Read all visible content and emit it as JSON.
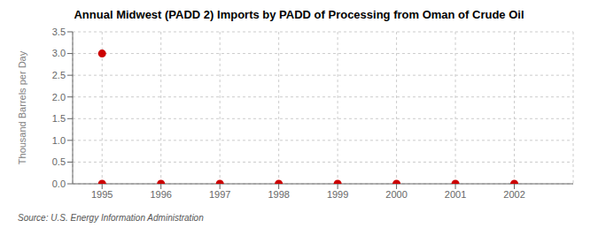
{
  "chart_data": {
    "type": "scatter",
    "title": "Annual Midwest (PADD 2) Imports by PADD of Processing from Oman of Crude Oil",
    "ylabel": "Thousand Barrels per Day",
    "annotations": [
      "Source: U.S. Energy Information Administration"
    ],
    "x": [
      1995,
      1996,
      1997,
      1998,
      1999,
      2000,
      2001,
      2002,
      1995
    ],
    "values": [
      0.0,
      0.0,
      0.0,
      0.0,
      0.0,
      0.0,
      0.0,
      0.0,
      3.0
    ],
    "color": "#cc0000",
    "xlim": [
      1994.5,
      2003.0
    ],
    "ylim": [
      0.0,
      3.5
    ],
    "xticks": [
      1995,
      1996,
      1997,
      1998,
      1999,
      2000,
      2001,
      2002
    ],
    "yticks": [
      {
        "value": 0.0,
        "label": "0.0"
      },
      0.5,
      {
        "value": 1.0,
        "label": "1.0"
      },
      1.5,
      {
        "value": 2.0,
        "label": "2.0"
      },
      2.5,
      {
        "value": 3.0,
        "label": "3.0"
      },
      3.5
    ],
    "grid": true
  }
}
